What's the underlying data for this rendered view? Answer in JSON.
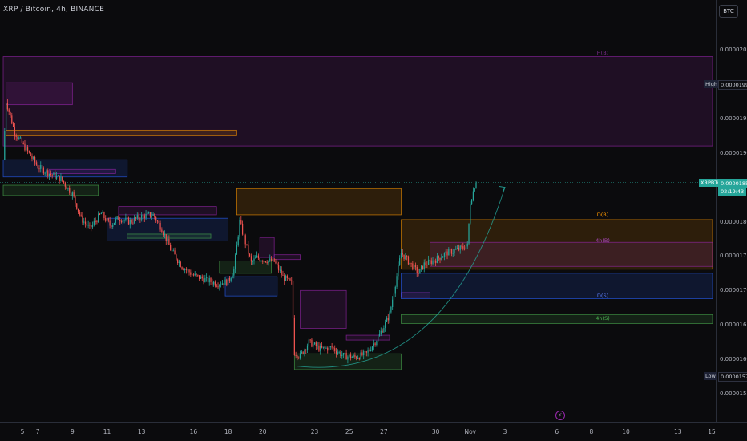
{
  "header": {
    "title": "XRP / Bitcoin, 4h, BINANCE",
    "currency_button": "BTC"
  },
  "price_tags": {
    "high": {
      "label": "High",
      "value": "0.00001998"
    },
    "current": {
      "label": "XRPBTC",
      "value": "0.00001857",
      "countdown": "02:19:43"
    },
    "low": {
      "label": "Low",
      "value": "0.00001575"
    }
  },
  "level_labels": [
    "H(B)",
    "D(B)",
    "4h(B)",
    "D(S)",
    "4h(S)"
  ],
  "colors": {
    "up": "#26a69a",
    "down": "#ef5350",
    "magenta": "#9c27b0",
    "orange": "#ff9800",
    "blue": "#2962ff",
    "green": "#4caf50",
    "bg": "#0b0b0d"
  },
  "chart_data": {
    "type": "candlestick",
    "title": "XRP / Bitcoin, 4h, BINANCE",
    "y_unit": "BTC",
    "ylim": [
      1.52e-05,
      2.12e-05
    ],
    "y_ticks": [
      "0.00002050",
      "0.00001950",
      "0.00001900",
      "0.00001800",
      "0.00001750",
      "0.00001700",
      "0.00001650",
      "0.00001600",
      "0.00001550"
    ],
    "x_ticks": [
      "5",
      "7",
      "9",
      "11",
      "13",
      "16",
      "18",
      "20",
      "23",
      "25",
      "27",
      "30",
      "Nov",
      "3",
      "6",
      "8",
      "10",
      "13",
      "15"
    ],
    "x_tick_positions": [
      0,
      12,
      24,
      36,
      48,
      66,
      78,
      90,
      108,
      120,
      132,
      150,
      162,
      174,
      192,
      204,
      216,
      234,
      246
    ],
    "close_path": [
      [
        0,
        1.89e-05
      ],
      [
        1,
        1.975e-05
      ],
      [
        4,
        1.93e-05
      ],
      [
        8,
        1.905e-05
      ],
      [
        12,
        1.88e-05
      ],
      [
        16,
        1.87e-05
      ],
      [
        20,
        1.862e-05
      ],
      [
        24,
        1.84e-05
      ],
      [
        27,
        1.805e-05
      ],
      [
        30,
        1.79e-05
      ],
      [
        34,
        1.812e-05
      ],
      [
        37,
        1.795e-05
      ],
      [
        40,
        1.805e-05
      ],
      [
        44,
        1.8e-05
      ],
      [
        48,
        1.808e-05
      ],
      [
        52,
        1.81e-05
      ],
      [
        55,
        1.79e-05
      ],
      [
        58,
        1.76e-05
      ],
      [
        62,
        1.735e-05
      ],
      [
        66,
        1.722e-05
      ],
      [
        70,
        1.716e-05
      ],
      [
        74,
        1.71e-05
      ],
      [
        78,
        1.713e-05
      ],
      [
        80,
        1.73e-05
      ],
      [
        82,
        1.8e-05
      ],
      [
        84,
        1.77e-05
      ],
      [
        86,
        1.74e-05
      ],
      [
        88,
        1.748e-05
      ],
      [
        90,
        1.745e-05
      ],
      [
        94,
        1.742e-05
      ],
      [
        97,
        1.72e-05
      ],
      [
        100,
        1.71e-05
      ],
      [
        101,
        1.61e-05
      ],
      [
        103,
        1.605e-05
      ],
      [
        106,
        1.625e-05
      ],
      [
        110,
        1.615e-05
      ],
      [
        114,
        1.617e-05
      ],
      [
        118,
        1.605e-05
      ],
      [
        122,
        1.603e-05
      ],
      [
        126,
        1.608e-05
      ],
      [
        130,
        1.632e-05
      ],
      [
        132,
        1.648e-05
      ],
      [
        134,
        1.665e-05
      ],
      [
        138,
        1.755e-05
      ],
      [
        141,
        1.74e-05
      ],
      [
        144,
        1.725e-05
      ],
      [
        146,
        1.738e-05
      ],
      [
        150,
        1.745e-05
      ],
      [
        154,
        1.755e-05
      ],
      [
        158,
        1.76e-05
      ],
      [
        161,
        1.765e-05
      ],
      [
        162,
        1.828e-05
      ],
      [
        164,
        1.86e-05
      ]
    ],
    "x_range": [
      0,
      246
    ],
    "zones": [
      {
        "name": "H(B)",
        "color": "magenta",
        "x": [
          0,
          246
        ],
        "y": [
          1.91e-05,
          2.04e-05
        ]
      },
      {
        "name": "magenta-top-left",
        "color": "magenta",
        "x": [
          1,
          24
        ],
        "y": [
          1.97e-05,
          2.002e-05
        ]
      },
      {
        "name": "orange-line-left",
        "color": "orange",
        "x": [
          1,
          81
        ],
        "y": [
          1.926e-05,
          1.933e-05
        ]
      },
      {
        "name": "blue-left",
        "color": "blue",
        "x": [
          0,
          43
        ],
        "y": [
          1.865e-05,
          1.89e-05
        ]
      },
      {
        "name": "magenta-small-left",
        "color": "magenta",
        "x": [
          16,
          39
        ],
        "y": [
          1.87e-05,
          1.876e-05
        ]
      },
      {
        "name": "green-left",
        "color": "green",
        "x": [
          0,
          33
        ],
        "y": [
          1.838e-05,
          1.853e-05
        ]
      },
      {
        "name": "blue-mid",
        "color": "blue",
        "x": [
          36,
          78
        ],
        "y": [
          1.772e-05,
          1.805e-05
        ]
      },
      {
        "name": "magenta-mid",
        "color": "magenta",
        "x": [
          40,
          74
        ],
        "y": [
          1.81e-05,
          1.822e-05
        ]
      },
      {
        "name": "green-mid",
        "color": "green",
        "x": [
          43,
          72
        ],
        "y": [
          1.776e-05,
          1.782e-05
        ]
      },
      {
        "name": "D(B)-upper",
        "color": "orange",
        "x": [
          81,
          138
        ],
        "y": [
          1.81e-05,
          1.848e-05
        ]
      },
      {
        "name": "magenta-mid2",
        "color": "magenta",
        "x": [
          89,
          94
        ],
        "y": [
          1.748e-05,
          1.777e-05
        ]
      },
      {
        "name": "magenta-mid3",
        "color": "magenta",
        "x": [
          94,
          103
        ],
        "y": [
          1.745e-05,
          1.752e-05
        ]
      },
      {
        "name": "green-mid2",
        "color": "green",
        "x": [
          75,
          93
        ],
        "y": [
          1.725e-05,
          1.743e-05
        ]
      },
      {
        "name": "blue-mid2",
        "color": "blue",
        "x": [
          77,
          95
        ],
        "y": [
          1.692e-05,
          1.72e-05
        ]
      },
      {
        "name": "magenta-low",
        "color": "magenta",
        "x": [
          103,
          119
        ],
        "y": [
          1.645e-05,
          1.7e-05
        ]
      },
      {
        "name": "magenta-low2",
        "color": "magenta",
        "x": [
          119,
          134
        ],
        "y": [
          1.628e-05,
          1.635e-05
        ]
      },
      {
        "name": "green-low",
        "color": "green",
        "x": [
          101,
          138
        ],
        "y": [
          1.585e-05,
          1.608e-05
        ]
      },
      {
        "name": "D(B)",
        "color": "orange",
        "x": [
          138,
          246
        ],
        "y": [
          1.731e-05,
          1.803e-05
        ]
      },
      {
        "name": "4h(B)",
        "color": "magenta",
        "x": [
          148,
          246
        ],
        "y": [
          1.735e-05,
          1.77e-05
        ]
      },
      {
        "name": "magenta-small-right",
        "color": "magenta",
        "x": [
          138,
          148
        ],
        "y": [
          1.69e-05,
          1.697e-05
        ]
      },
      {
        "name": "D(S)",
        "color": "blue",
        "x": [
          138,
          246
        ],
        "y": [
          1.688e-05,
          1.725e-05
        ]
      },
      {
        "name": "4h(S)",
        "color": "green",
        "x": [
          138,
          246
        ],
        "y": [
          1.652e-05,
          1.665e-05
        ]
      }
    ],
    "arrow": {
      "from": [
        102,
        1.59e-05
      ],
      "to": [
        174,
        1.85e-05
      ]
    }
  }
}
